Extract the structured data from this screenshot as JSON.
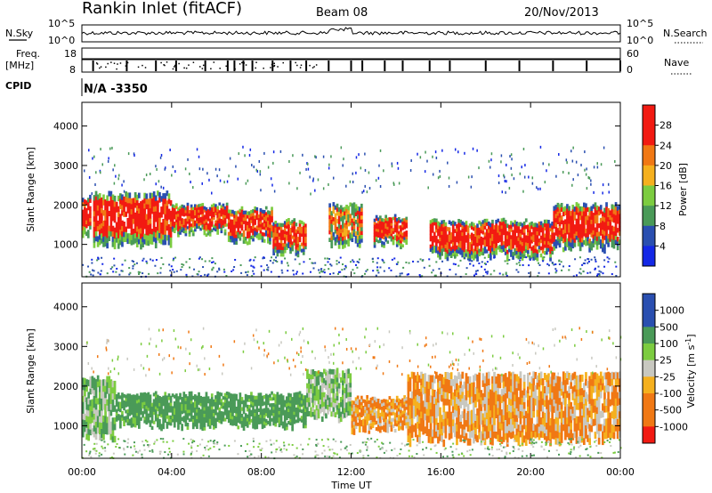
{
  "header": {
    "station": "Rankin Inlet (fitACF)",
    "beam": "Beam 08",
    "date": "20/Nov/2013"
  },
  "panels_top": {
    "nsky_label": "N.Sky",
    "nsky_ticks": [
      "10^5",
      "10^0"
    ],
    "nsearch_label": "N.Search",
    "nsearch_ticks": [
      "10^5",
      "10^0"
    ],
    "freq_label_1": "Freq.",
    "freq_label_2": "[MHz]",
    "freq_ticks": [
      "18",
      "8"
    ],
    "nave_label": "Nave",
    "nave_ticks": [
      "60",
      "0"
    ],
    "cpid_label": "CPID",
    "cpid_value": "N/A -3350"
  },
  "colors": {
    "red": "#f21a12",
    "orange": "#f07814",
    "yellow_orange": "#f5b01e",
    "green": "#4a9a58",
    "light_green": "#7ccc40",
    "blue": "#2a4fb0",
    "gray": "#c8c8c0",
    "bright_blue": "#1428e6"
  },
  "chart_data": [
    {
      "type": "heatmap",
      "name": "power",
      "ylabel": "Slant Range [km]",
      "yticks": [
        "4000",
        "3000",
        "2000",
        "1000"
      ],
      "ylim": [
        180,
        4600
      ],
      "x_ticks": [
        "00:00",
        "04:00",
        "08:00",
        "12:00",
        "16:00",
        "20:00",
        "00:00"
      ],
      "colorbar": {
        "label": "Power [dB]",
        "ticks": [
          "28",
          "24",
          "20",
          "16",
          "12",
          "8",
          "4"
        ],
        "range": [
          0,
          30
        ]
      },
      "bands": [
        {
          "t0": 0.0,
          "t1": 0.4,
          "r0": 1200,
          "r1": 2200,
          "level": "high"
        },
        {
          "t0": 0.5,
          "t1": 4.0,
          "r0": 1000,
          "r1": 2300,
          "level": "high"
        },
        {
          "t0": 4.0,
          "t1": 6.5,
          "r0": 1300,
          "r1": 2000,
          "level": "high"
        },
        {
          "t0": 6.5,
          "t1": 8.5,
          "r0": 1100,
          "r1": 1900,
          "level": "high"
        },
        {
          "t0": 8.5,
          "t1": 10.0,
          "r0": 800,
          "r1": 1600,
          "level": "high"
        },
        {
          "t0": 11.0,
          "t1": 12.5,
          "r0": 1000,
          "r1": 2000,
          "level": "mid"
        },
        {
          "t0": 13.0,
          "t1": 14.5,
          "r0": 1000,
          "r1": 1700,
          "level": "high"
        },
        {
          "t0": 15.5,
          "t1": 21.0,
          "r0": 700,
          "r1": 1600,
          "level": "high"
        },
        {
          "t0": 21.0,
          "t1": 24.0,
          "r0": 900,
          "r1": 2000,
          "level": "high"
        }
      ]
    },
    {
      "type": "heatmap",
      "name": "velocity",
      "ylabel": "Slant Range [km]",
      "yticks": [
        "4000",
        "3000",
        "2000",
        "1000"
      ],
      "ylim": [
        180,
        4600
      ],
      "x_ticks": [
        "00:00",
        "04:00",
        "08:00",
        "12:00",
        "16:00",
        "20:00",
        "00:00"
      ],
      "xlabel": "Time UT",
      "colorbar": {
        "label": "Velocity [m s^-1]",
        "ticks": [
          "1000",
          "500",
          "100",
          "25",
          "-25",
          "-100",
          "-500",
          "-1000"
        ]
      },
      "bands": [
        {
          "t0": 0.0,
          "t1": 1.5,
          "r0": 700,
          "r1": 2200,
          "sign": "neg_small"
        },
        {
          "t0": 1.5,
          "t1": 10.0,
          "r0": 1000,
          "r1": 1800,
          "sign": "pos_med"
        },
        {
          "t0": 10.0,
          "t1": 12.0,
          "r0": 1200,
          "r1": 2400,
          "sign": "neg_small"
        },
        {
          "t0": 12.0,
          "t1": 14.5,
          "r0": 900,
          "r1": 1700,
          "sign": "neg_med"
        },
        {
          "t0": 14.5,
          "t1": 24.0,
          "r0": 600,
          "r1": 2300,
          "sign": "neg_med"
        }
      ]
    }
  ]
}
